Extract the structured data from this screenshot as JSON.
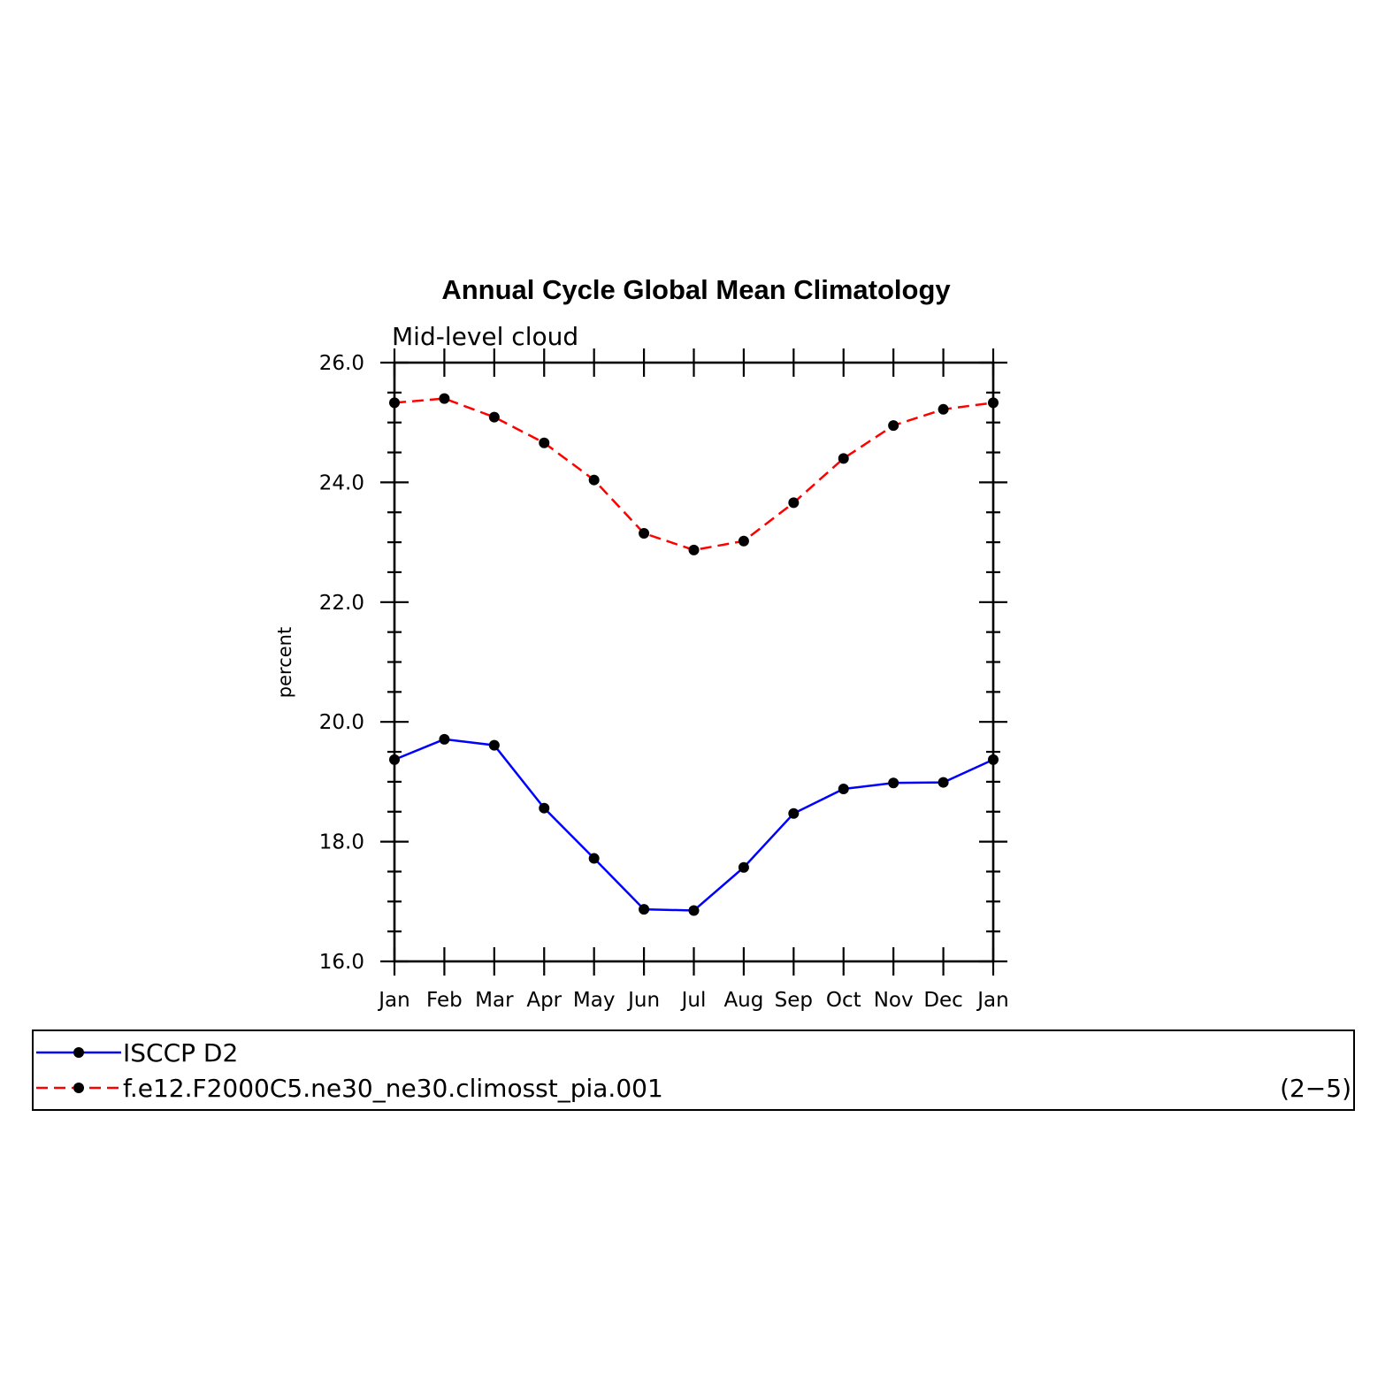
{
  "chart_data": {
    "type": "line",
    "title": "Annual Cycle Global Mean Climatology",
    "subtitle": "Mid-level cloud",
    "ylabel": "percent",
    "xlabel": "",
    "categories": [
      "Jan",
      "Feb",
      "Mar",
      "Apr",
      "May",
      "Jun",
      "Jul",
      "Aug",
      "Sep",
      "Oct",
      "Nov",
      "Dec",
      "Jan"
    ],
    "ylim": [
      16.0,
      26.0
    ],
    "y_ticks": [
      "16.0",
      "18.0",
      "20.0",
      "22.0",
      "24.0",
      "26.0"
    ],
    "series": [
      {
        "name": "ISCCP D2",
        "color": "#0000ff",
        "dash": "solid",
        "marker": "filled-circle",
        "values": [
          19.37,
          19.71,
          19.61,
          18.56,
          17.72,
          16.87,
          16.85,
          17.57,
          18.47,
          18.88,
          18.98,
          18.99,
          19.37
        ]
      },
      {
        "name": "f.e12.F2000C5.ne30_ne30.climosst_pia.001",
        "color": "#ff0000",
        "dash": "dashed",
        "marker": "filled-circle",
        "values": [
          25.33,
          25.4,
          25.09,
          24.66,
          24.04,
          23.15,
          22.87,
          23.02,
          23.66,
          24.4,
          24.95,
          25.22,
          25.33
        ]
      }
    ],
    "legend_note": "(2−5)",
    "legend_position": "bottom"
  }
}
